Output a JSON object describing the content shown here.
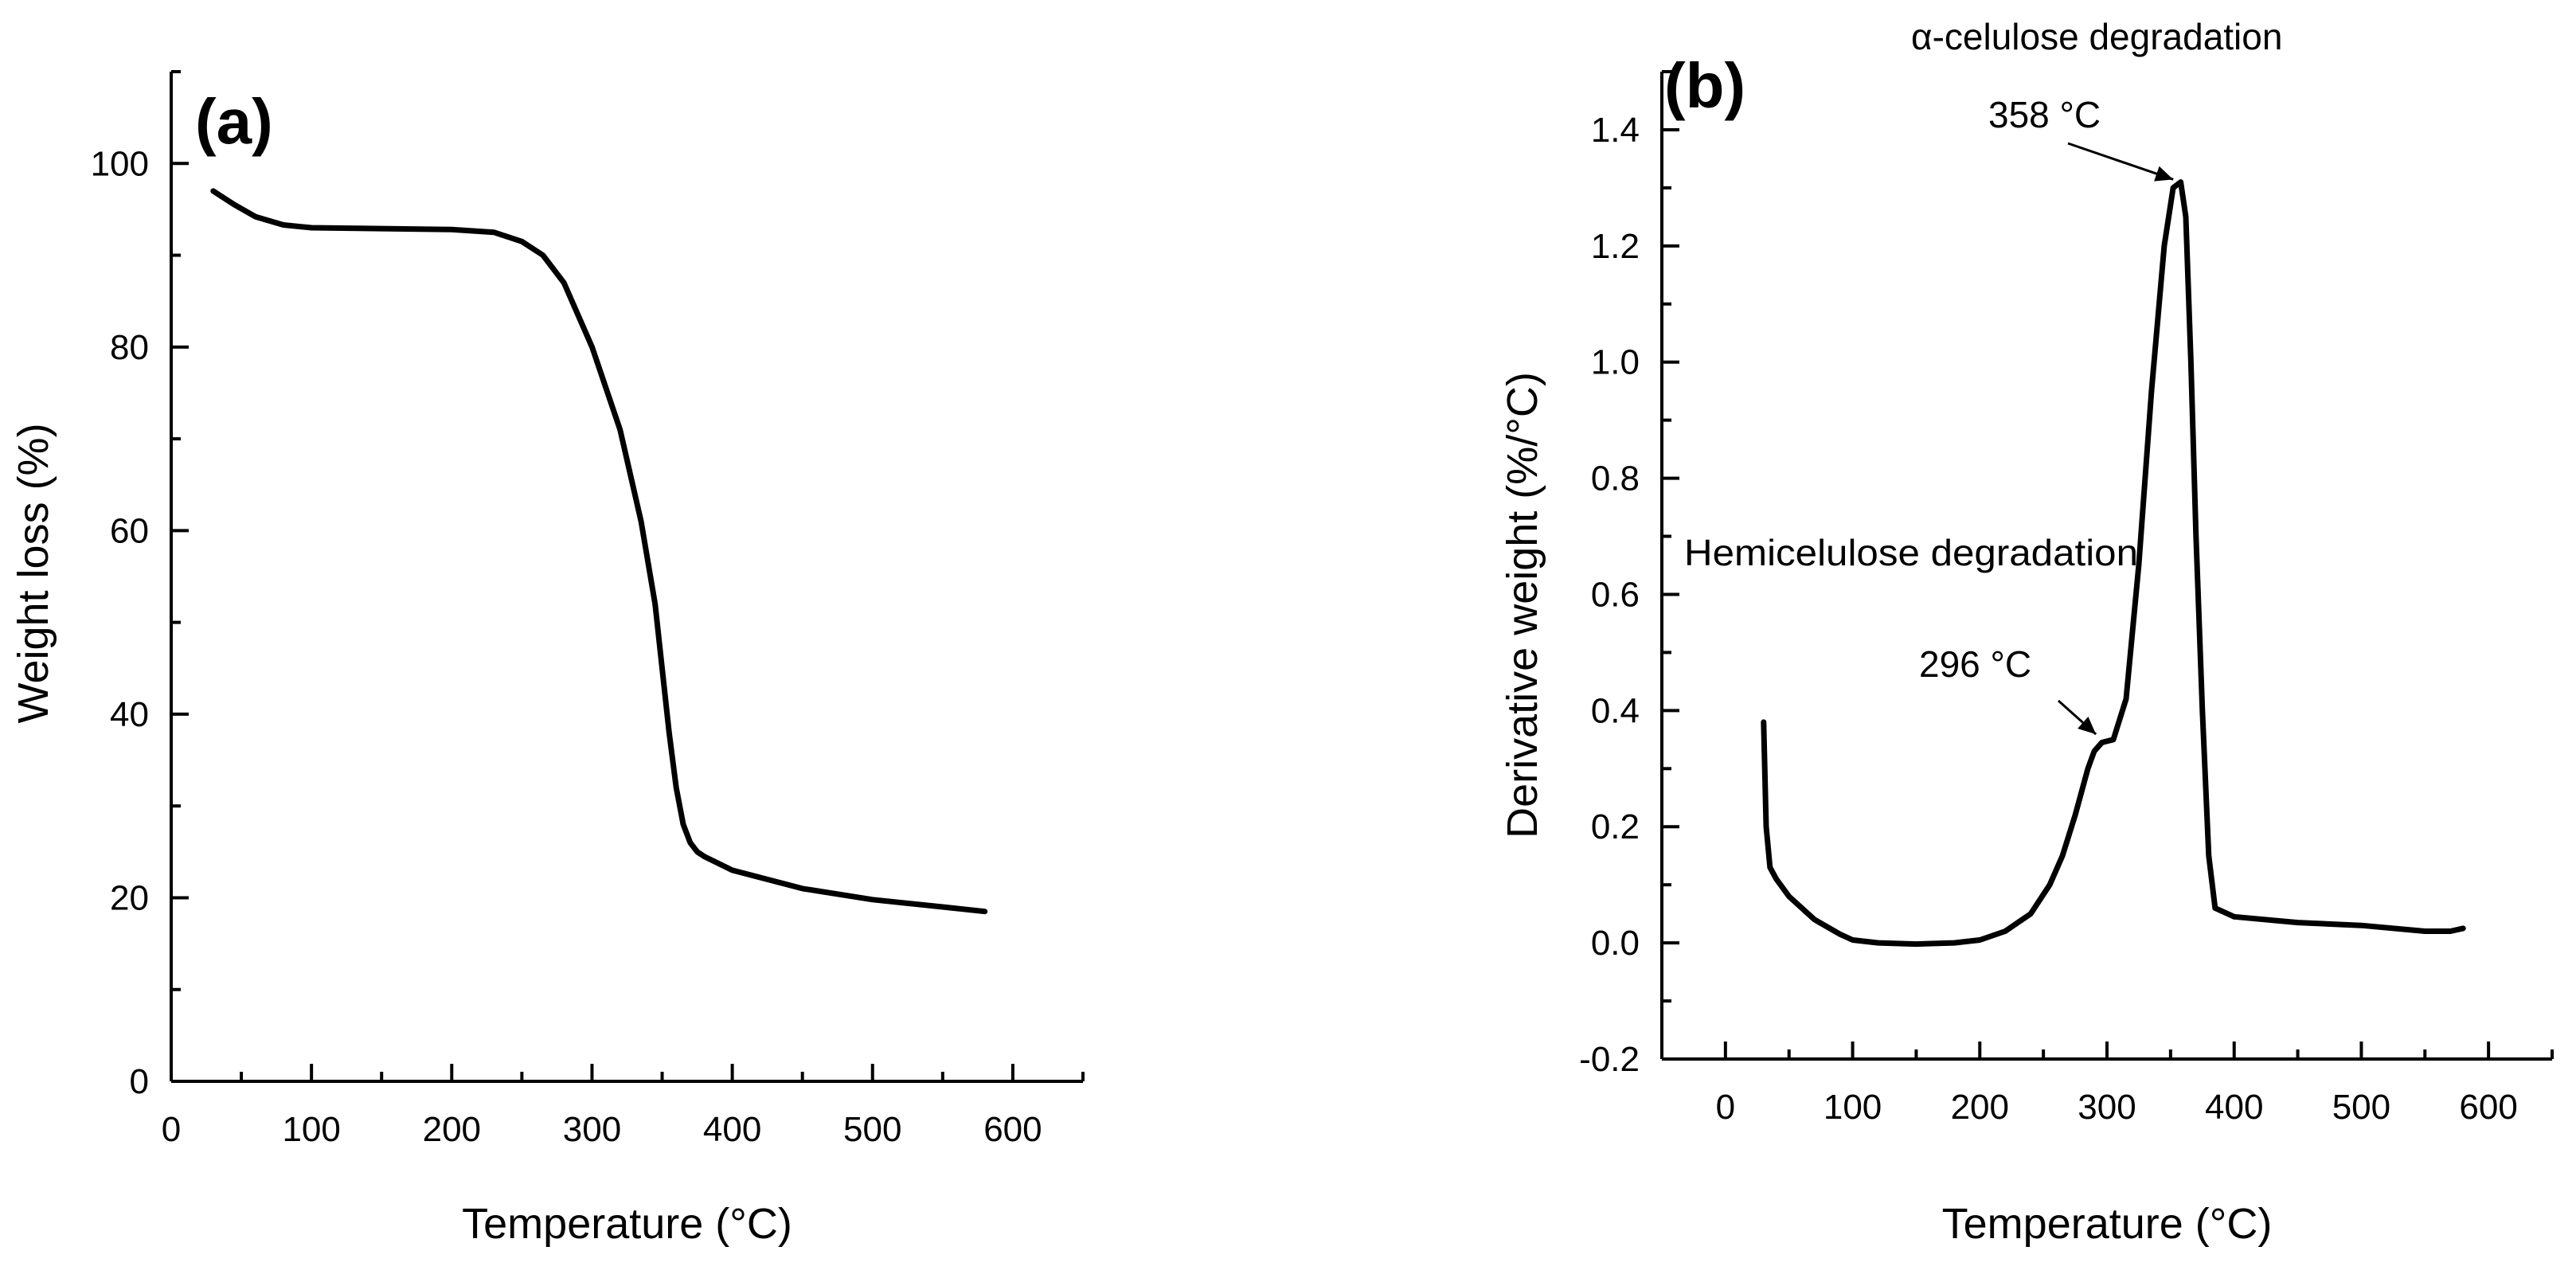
{
  "chart_data": [
    {
      "type": "line",
      "panel_label": "(a)",
      "xlabel": "Temperature (°C)",
      "ylabel": "Weight loss (%)",
      "xlim": [
        0,
        650
      ],
      "ylim": [
        0,
        110
      ],
      "xticks": [
        0,
        100,
        200,
        300,
        400,
        500,
        600
      ],
      "yticks": [
        0,
        20,
        40,
        60,
        80,
        100
      ],
      "grid": false,
      "series": [
        {
          "x": [
            30,
            45,
            60,
            80,
            100,
            150,
            200,
            230,
            250,
            265,
            280,
            300,
            320,
            335,
            345,
            350,
            355,
            360,
            365,
            370,
            375,
            380,
            400,
            450,
            500,
            550,
            580
          ],
          "y": [
            97,
            95.5,
            94.2,
            93.3,
            93,
            92.9,
            92.8,
            92.5,
            91.5,
            90,
            87,
            80,
            71,
            61,
            52,
            45,
            38,
            32,
            28,
            26,
            25,
            24.5,
            23,
            21,
            19.8,
            19,
            18.5
          ]
        }
      ]
    },
    {
      "type": "line",
      "panel_label": "(b)",
      "xlabel": "Temperature (°C)",
      "ylabel": "Derivative weight (%/°C)",
      "xlim": [
        -50,
        650
      ],
      "ylim": [
        -0.2,
        1.5
      ],
      "xticks": [
        0,
        100,
        200,
        300,
        400,
        500,
        600
      ],
      "yticks": [
        -0.2,
        0.0,
        0.2,
        0.4,
        0.6,
        0.8,
        1.0,
        1.2,
        1.4
      ],
      "grid": false,
      "series": [
        {
          "x": [
            30,
            32,
            35,
            40,
            50,
            70,
            90,
            100,
            120,
            150,
            180,
            200,
            220,
            240,
            255,
            265,
            275,
            285,
            290,
            296,
            305,
            315,
            325,
            335,
            345,
            352,
            358,
            362,
            366,
            370,
            375,
            380,
            385,
            400,
            450,
            500,
            550,
            570,
            580
          ],
          "y": [
            0.38,
            0.2,
            0.13,
            0.11,
            0.08,
            0.04,
            0.015,
            0.005,
            0.0,
            -0.002,
            0.0,
            0.005,
            0.02,
            0.05,
            0.1,
            0.15,
            0.22,
            0.3,
            0.33,
            0.345,
            0.35,
            0.42,
            0.65,
            0.95,
            1.2,
            1.3,
            1.31,
            1.25,
            1.0,
            0.7,
            0.4,
            0.15,
            0.06,
            0.045,
            0.035,
            0.03,
            0.02,
            0.02,
            0.025
          ]
        }
      ],
      "annotations": [
        {
          "text": "α-celulose degradation"
        },
        {
          "text": "358 °C",
          "x": 358,
          "y": 1.31
        },
        {
          "text": "Hemicelulose degradation"
        },
        {
          "text": "296 °C",
          "x": 296,
          "y": 0.35
        }
      ]
    }
  ]
}
